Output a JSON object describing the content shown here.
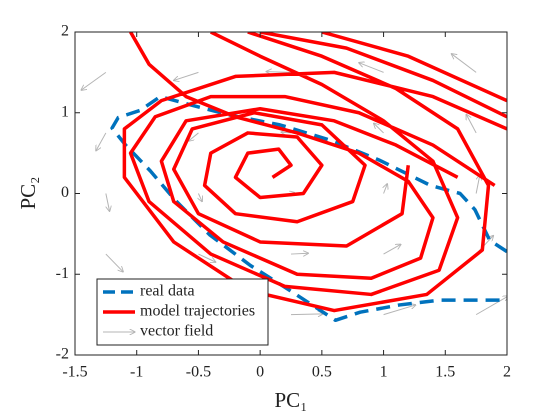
{
  "chart_data": {
    "type": "line",
    "x_label": "PC₁",
    "y_label": "PC₂",
    "xlim": [
      -1.5,
      2
    ],
    "ylim": [
      -2,
      2
    ],
    "xticks": [
      -1.5,
      -1,
      -0.5,
      0,
      0.5,
      1,
      1.5,
      2
    ],
    "yticks": [
      -2,
      -1,
      0,
      1,
      2
    ],
    "legend": "lower left",
    "series": [
      {
        "name": "real data",
        "color": "#0072bd",
        "style": "dashed",
        "x": [
          2,
          1.86,
          1.74,
          1.62,
          1.38,
          0.97,
          0.57,
          0.16,
          -0.24,
          -0.57,
          -0.81,
          -0.97,
          -1.15,
          -1.2,
          -1.09,
          -0.89,
          -0.69,
          -0.41,
          -0.08,
          0.24,
          0.61,
          0.81,
          1.13,
          1.46,
          2
        ],
        "y": [
          -0.72,
          -0.58,
          -0.2,
          0,
          0.1,
          0.41,
          0.66,
          0.85,
          0.97,
          1.1,
          1.2,
          1.03,
          0.94,
          0.81,
          0.6,
          0.28,
          -0.08,
          -0.51,
          -0.89,
          -1.2,
          -1.57,
          -1.47,
          -1.38,
          -1.32,
          -1.32
        ]
      },
      {
        "name": "model trajectories",
        "color": "#ff0000",
        "style": "solid",
        "x": [
          0.1,
          0.25,
          0.15,
          -0.1,
          -0.2,
          0,
          0.35,
          0.5,
          0.3,
          -0.1,
          -0.4,
          -0.45,
          -0.2,
          0.3,
          0.75,
          0.85,
          0.5,
          -0.05,
          -0.55,
          -0.7,
          -0.5,
          0,
          0.7,
          1.15,
          1.2,
          null,
          -1.05,
          -0.9,
          -0.6,
          -0.2,
          0.3,
          0.8,
          1.2,
          1.4,
          1.3,
          0.9,
          0.3,
          -0.3,
          -0.7,
          -0.8,
          -0.6,
          0,
          0.6,
          1.1,
          1.6,
          null,
          -0.4,
          0,
          0.5,
          1,
          1.4,
          1.6,
          1.45,
          0.9,
          0.2,
          -0.4,
          -0.9,
          -1.05,
          -0.85,
          -0.4,
          0.2,
          0.8,
          1.4,
          1.9,
          null,
          -0.1,
          0.5,
          1.1,
          1.6,
          1.85,
          1.8,
          1.35,
          0.6,
          -0.1,
          -0.7,
          -1.1,
          -1.1,
          -0.8,
          -0.2,
          0.6,
          1.4,
          2,
          null,
          0,
          0.7,
          1.4,
          2,
          null,
          0.5,
          1.2,
          2
        ],
        "y": [
          0.2,
          0.35,
          0.55,
          0.5,
          0.2,
          -0.05,
          0,
          0.35,
          0.7,
          0.75,
          0.5,
          0.1,
          -0.25,
          -0.35,
          -0.1,
          0.35,
          0.85,
          1,
          0.8,
          0.3,
          -0.25,
          -0.6,
          -0.65,
          -0.25,
          0.35,
          null,
          2,
          1.6,
          1.2,
          0.95,
          0.75,
          0.5,
          0.15,
          -0.3,
          -0.8,
          -1.05,
          -1,
          -0.6,
          -0.1,
          0.4,
          0.9,
          1.05,
          0.9,
          0.6,
          0.2,
          null,
          2,
          1.7,
          1.35,
          0.9,
          0.4,
          -0.3,
          -0.95,
          -1.25,
          -1.15,
          -0.75,
          -0.1,
          0.5,
          0.95,
          1.2,
          1.2,
          1,
          0.6,
          0.1,
          null,
          2,
          1.7,
          1.3,
          0.8,
          0.1,
          -0.7,
          -1.25,
          -1.45,
          -1.2,
          -0.6,
          0.2,
          0.8,
          1.15,
          1.45,
          1.5,
          1.2,
          0.8,
          null,
          2,
          1.8,
          1.4,
          0.95,
          null,
          2,
          1.7,
          1.15
        ]
      },
      {
        "name": "vector field",
        "color": "#b4b4b4",
        "style": "quiver",
        "x": [
          -1.25,
          -0.5,
          0.25,
          1,
          1.75,
          -1.25,
          -0.5,
          0.25,
          1,
          1.75,
          -1.25,
          -0.5,
          0.25,
          1,
          1.75,
          -1.25,
          -0.5,
          0.25,
          1,
          1.75,
          -1.25,
          -0.5,
          0.25,
          1,
          1.75
        ],
        "y": [
          -1.5,
          -1.5,
          -1.5,
          -1.5,
          -1.5,
          -0.75,
          -0.75,
          -0.75,
          -0.75,
          -0.75,
          0,
          0,
          0,
          0,
          0,
          0.75,
          0.75,
          0.75,
          0.75,
          0.75,
          1.5,
          1.5,
          1.5,
          1.5,
          1.5
        ],
        "u": [
          0.26,
          0.26,
          0.26,
          0.26,
          0.26,
          0.14,
          0.14,
          0.14,
          0.14,
          0.14,
          0.03,
          0.03,
          0.03,
          0.03,
          0.03,
          -0.08,
          -0.08,
          -0.08,
          -0.08,
          -0.08,
          -0.2,
          -0.2,
          -0.2,
          -0.2,
          -0.2
        ],
        "v": [
          -0.22,
          -0.1,
          0.01,
          0.12,
          0.23,
          -0.22,
          -0.1,
          0.01,
          0.12,
          0.23,
          -0.22,
          -0.1,
          0.01,
          0.12,
          0.23,
          -0.22,
          -0.1,
          0.01,
          0.12,
          0.23,
          -0.22,
          -0.1,
          0.01,
          0.12,
          0.23
        ]
      }
    ]
  }
}
